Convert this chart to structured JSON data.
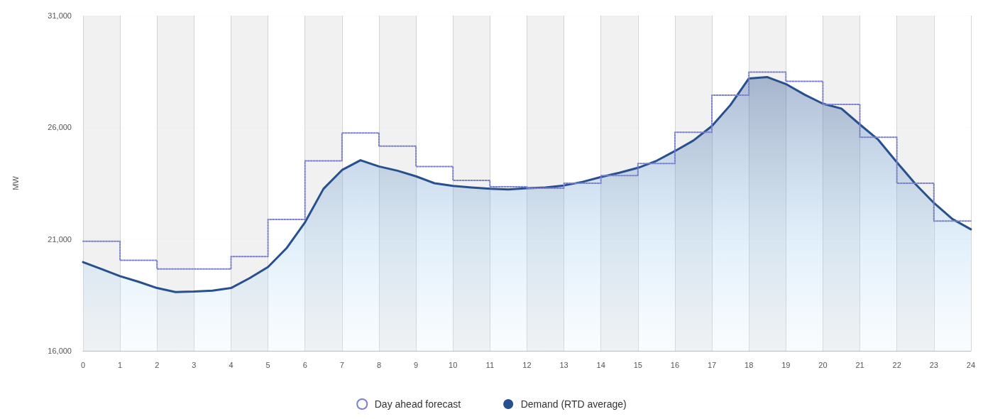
{
  "chart_data": {
    "type": "area",
    "ylabel": "MW",
    "xlim": [
      0,
      24
    ],
    "xticks": [
      0,
      1,
      2,
      3,
      4,
      5,
      6,
      7,
      8,
      9,
      10,
      11,
      12,
      13,
      14,
      15,
      16,
      17,
      18,
      19,
      20,
      21,
      22,
      23,
      24
    ],
    "ylim": [
      16000,
      31000
    ],
    "yticks": [
      {
        "value": 16000,
        "label": "16,000"
      },
      {
        "value": 21000,
        "label": "21,000"
      },
      {
        "value": 26000,
        "label": "26,000"
      },
      {
        "value": 31000,
        "label": "31,000"
      }
    ],
    "grid": true,
    "legend": "bottom",
    "marker": "none",
    "series": [
      {
        "name": "Day ahead forecast",
        "type": "step",
        "line_style": "dotted",
        "color": "#7a7fd0",
        "x": [
          0,
          1,
          2,
          3,
          4,
          5,
          6,
          7,
          8,
          9,
          10,
          11,
          12,
          13,
          14,
          15,
          16,
          17,
          18,
          19,
          20,
          21,
          22,
          23,
          24
        ],
        "values": [
          20900,
          20050,
          19660,
          19660,
          20220,
          21880,
          24500,
          25750,
          25160,
          24250,
          23630,
          23340,
          23280,
          23500,
          23840,
          24380,
          25780,
          27440,
          28470,
          28060,
          27030,
          25560,
          23500,
          21810,
          21810
        ]
      },
      {
        "name": "Demand (RTD average)",
        "line_style": "solid",
        "color": "#27508f",
        "x": [
          0,
          0.5,
          1,
          1.5,
          2,
          2.5,
          3,
          3.5,
          4,
          4.5,
          5,
          5.5,
          6,
          6.5,
          7,
          7.5,
          8,
          8.5,
          9,
          9.5,
          10,
          10.5,
          11,
          11.5,
          12,
          12.5,
          13,
          13.5,
          14,
          14.5,
          15,
          15.5,
          16,
          16.5,
          17,
          17.5,
          18,
          18.5,
          19,
          19.5,
          20,
          20.5,
          21,
          21.5,
          22,
          22.5,
          23,
          23.5,
          24
        ],
        "values": [
          19970,
          19660,
          19340,
          19090,
          18810,
          18630,
          18650,
          18690,
          18810,
          19250,
          19750,
          20590,
          21750,
          23250,
          24090,
          24530,
          24250,
          24060,
          23810,
          23500,
          23380,
          23310,
          23250,
          23220,
          23280,
          23310,
          23400,
          23560,
          23780,
          23970,
          24190,
          24500,
          24940,
          25410,
          26060,
          27000,
          28190,
          28250,
          27940,
          27470,
          27060,
          26840,
          26130,
          25440,
          24440,
          23470,
          22620,
          21900,
          21440
        ]
      }
    ]
  }
}
